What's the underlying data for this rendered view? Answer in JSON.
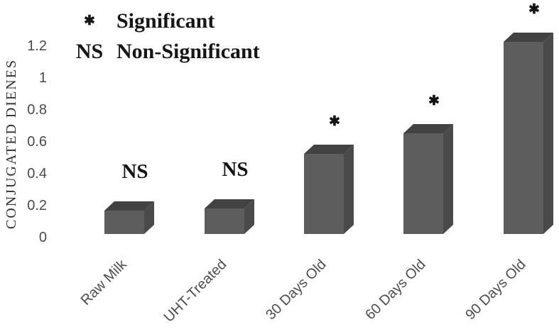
{
  "legend": {
    "significant_symbol": "✱",
    "significant_label": "Significant",
    "nonsignificant_symbol": "NS",
    "nonsignificant_label": "Non-Significant"
  },
  "chart_data": {
    "type": "bar",
    "style": "3d-column",
    "title": "",
    "xlabel": "",
    "ylabel": "CONJUGATED DIENES",
    "categories": [
      "Raw Milk",
      "UHT-Treated",
      "30 Days Old",
      "60 Days Old",
      "90 Days Old"
    ],
    "values": [
      0.15,
      0.16,
      0.51,
      0.64,
      1.22
    ],
    "markers": [
      "NS",
      "NS",
      "*",
      "*",
      "*"
    ],
    "marker_glyphs": {
      "*": "✱",
      "NS": "NS"
    },
    "marker_meaning": {
      "*": "Significant",
      "NS": "Non-Significant"
    },
    "ytick_labels": [
      "1.2",
      "1",
      "0.8",
      "0.6",
      "0.4",
      "0.2",
      "0"
    ],
    "ylim": [
      0,
      1.3
    ],
    "grid": false,
    "legend_position": "top-left",
    "bar_colors": {
      "front": "#5d5d5d",
      "side": "#4a4a4a",
      "top": "#424242"
    },
    "text_colors": {
      "axis_text": "#4a4a4a",
      "category_text": "#4d4d4d",
      "annotation_text": "#161616"
    }
  }
}
